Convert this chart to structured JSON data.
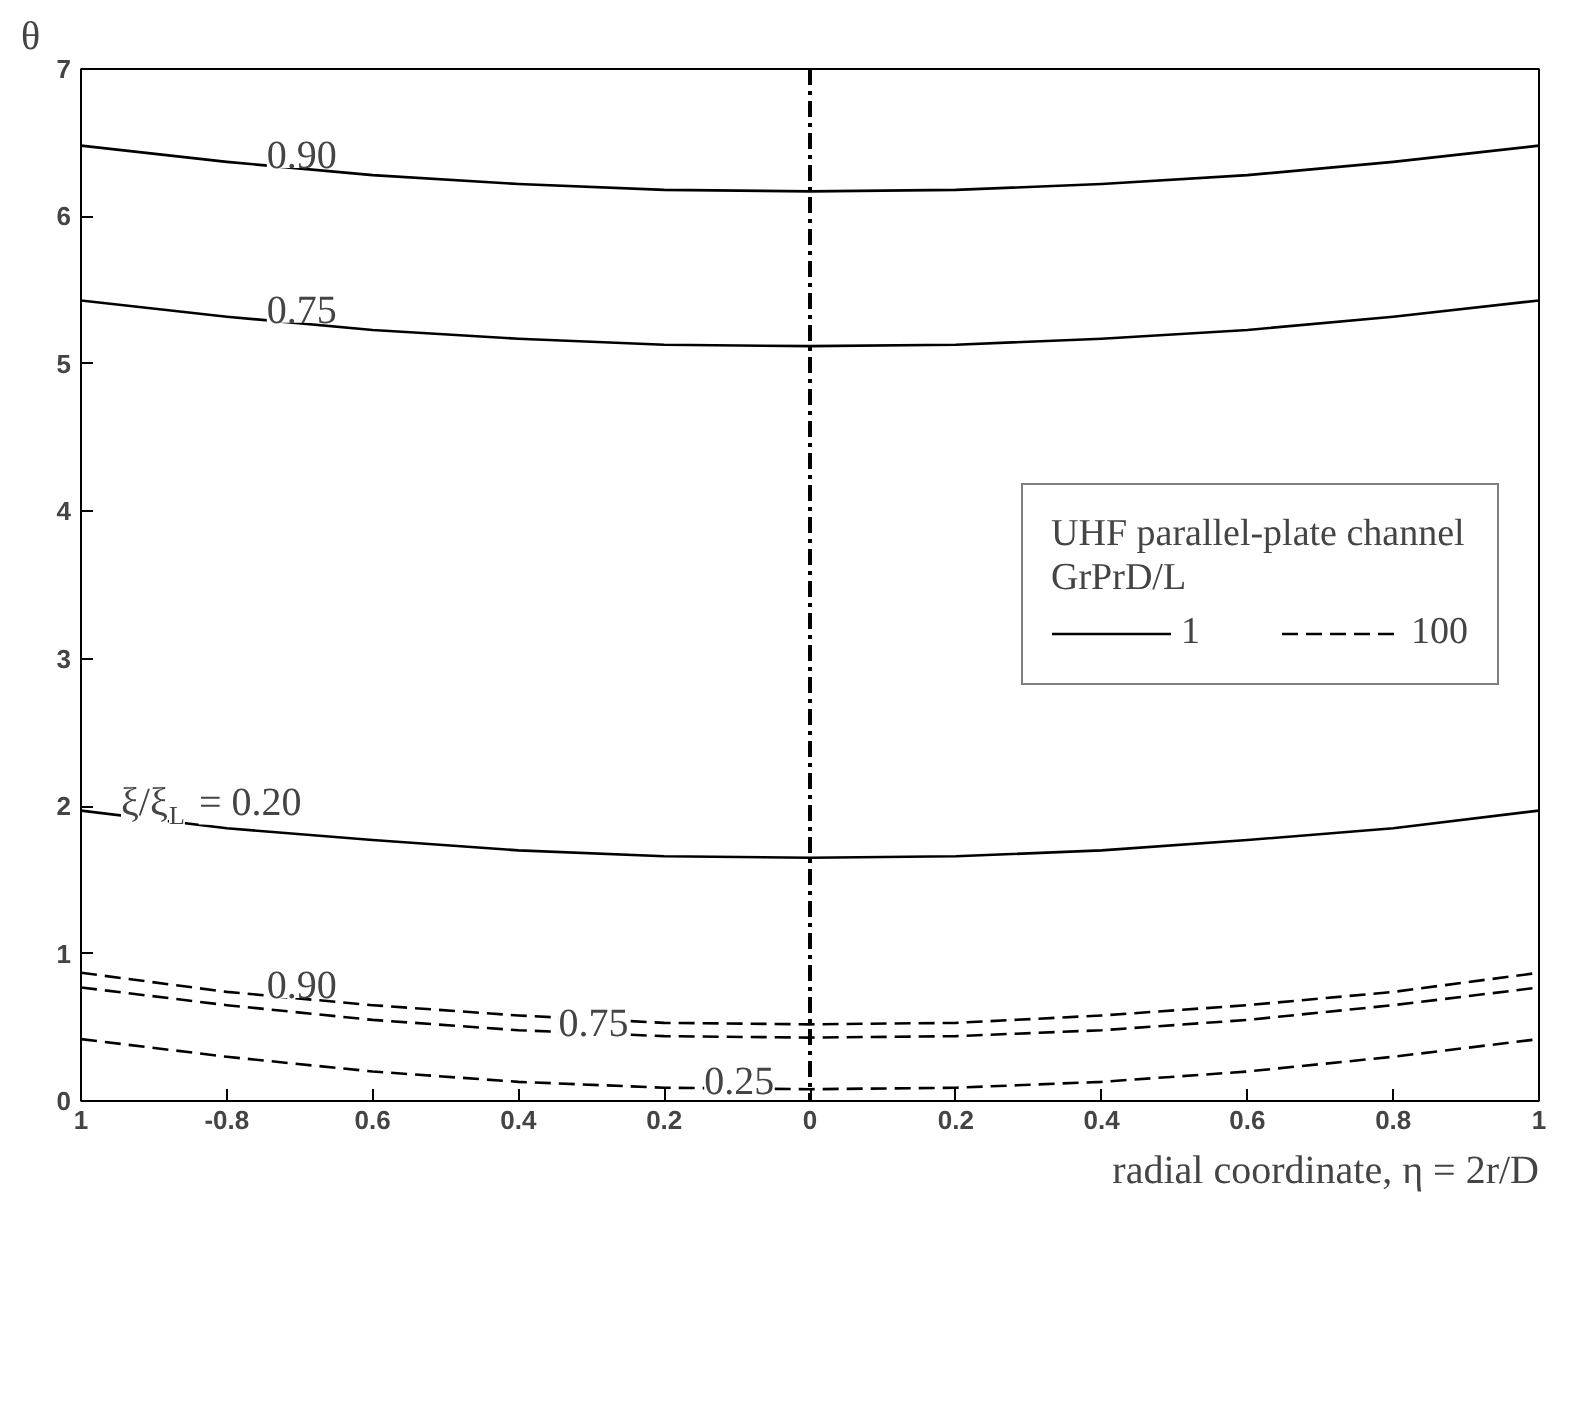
{
  "chart_data": {
    "type": "line",
    "xlabel": "radial coordinate, η = 2r/D",
    "ylabel": "θ",
    "legend_title": "UHF parallel-plate channel\nGrPrD/L",
    "legend": "right",
    "x": [
      -1,
      -0.8,
      -0.6,
      -0.4,
      -0.2,
      0,
      0.2,
      0.4,
      0.6,
      0.8,
      1
    ],
    "series": [
      {
        "name": "1",
        "color": "#000000",
        "line_style": "solid",
        "values": [
          6.48,
          6.37,
          6.28,
          6.22,
          6.18,
          6.17,
          6.18,
          6.22,
          6.28,
          6.37,
          6.48
        ]
      },
      {
        "color": "#000000",
        "line_style": "solid",
        "values": [
          5.43,
          5.32,
          5.23,
          5.17,
          5.13,
          5.12,
          5.13,
          5.17,
          5.23,
          5.32,
          5.43
        ]
      },
      {
        "color": "#000000",
        "line_style": "solid",
        "values": [
          1.97,
          1.85,
          1.77,
          1.7,
          1.66,
          1.65,
          1.66,
          1.7,
          1.77,
          1.85,
          1.97
        ]
      },
      {
        "name": "100",
        "color": "#000000",
        "line_style": "dashed",
        "values": [
          0.87,
          0.74,
          0.65,
          0.58,
          0.53,
          0.52,
          0.53,
          0.58,
          0.65,
          0.74,
          0.87
        ]
      },
      {
        "color": "#000000",
        "line_style": "dashed",
        "values": [
          0.77,
          0.65,
          0.55,
          0.48,
          0.44,
          0.43,
          0.44,
          0.48,
          0.55,
          0.65,
          0.77
        ]
      },
      {
        "color": "#000000",
        "line_style": "dashed",
        "values": [
          0.42,
          0.3,
          0.2,
          0.13,
          0.09,
          0.08,
          0.09,
          0.13,
          0.2,
          0.3,
          0.42
        ]
      }
    ],
    "xlim": [
      -1,
      1
    ],
    "ylim": [
      0,
      7
    ],
    "xticks": [
      {
        "value": -1,
        "label": "1"
      },
      {
        "value": -0.8,
        "label": "-0.8"
      },
      {
        "value": -0.6,
        "label": "0.6"
      },
      {
        "value": -0.4,
        "label": "0.4"
      },
      {
        "value": -0.2,
        "label": "0.2"
      },
      0,
      0.2,
      0.4,
      0.6,
      0.8,
      1
    ],
    "yticks": [
      0,
      1,
      2,
      3,
      4,
      5,
      6,
      7
    ],
    "ref_lines": [
      {
        "axis": "x",
        "value": 0,
        "line_style": "dashdot",
        "color": "#000000"
      }
    ],
    "annotations": [
      {
        "text": "0.90",
        "x": -0.8,
        "y": 6.37
      },
      {
        "text": "0.75",
        "x": -0.8,
        "y": 5.32
      },
      {
        "text": "ξ/ξ$_{L}$ = 0.20",
        "x": -1,
        "y": 1.97
      },
      {
        "text": "0.90",
        "x": -0.8,
        "y": 0.74
      },
      {
        "text": "0.75",
        "x": -0.4,
        "y": 0.48
      },
      {
        "text": "0.25",
        "x": -0.2,
        "y": 0.09
      }
    ],
    "grid": false
  }
}
